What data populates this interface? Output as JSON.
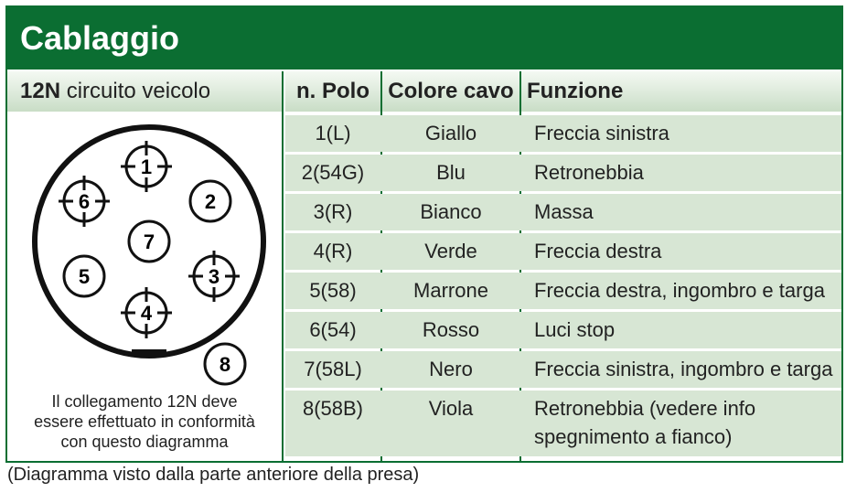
{
  "header": {
    "title": "Cablaggio"
  },
  "panel": {
    "title_bold": "12N",
    "title_rest": "circuito veicolo",
    "diagram": {
      "pins": [
        "1",
        "2",
        "3",
        "4",
        "5",
        "6",
        "7",
        "8"
      ]
    },
    "caption": [
      "Il collegamento 12N deve",
      "essere effettuato in conformità",
      "con questo diagramma"
    ]
  },
  "table": {
    "header": [
      "n. Polo",
      "Colore cavo",
      "Funzione"
    ],
    "rows": [
      [
        "1(L)",
        "Giallo",
        "Freccia sinistra"
      ],
      [
        "2(54G)",
        "Blu",
        "Retronebbia"
      ],
      [
        "3(R)",
        "Bianco",
        "Massa"
      ],
      [
        "4(R)",
        "Verde",
        "Freccia destra"
      ],
      [
        "5(58)",
        "Marrone",
        "Freccia destra, ingombro e targa"
      ],
      [
        "6(54)",
        "Rosso",
        "Luci stop"
      ],
      [
        "7(58L)",
        "Nero",
        "Freccia sinistra, ingombro e targa"
      ],
      [
        "8(58B)",
        "Viola",
        "Retronebbia (vedere info spegnimento a fianco)"
      ]
    ]
  },
  "footer": {
    "note": "(Diagramma visto dalla parte anteriore della presa)"
  }
}
